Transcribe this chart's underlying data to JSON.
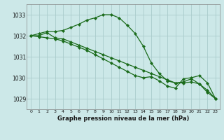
{
  "xlabel": "Graphe pression niveau de la mer (hPa)",
  "background_color": "#cce8e8",
  "grid_color": "#aacccc",
  "line_color": "#1a6b1a",
  "xlim": [
    -0.5,
    23.5
  ],
  "ylim": [
    1028.5,
    1033.5
  ],
  "yticks": [
    1029,
    1030,
    1031,
    1032,
    1033
  ],
  "xticks": [
    0,
    1,
    2,
    3,
    4,
    5,
    6,
    7,
    8,
    9,
    10,
    11,
    12,
    13,
    14,
    15,
    16,
    17,
    18,
    19,
    20,
    21,
    22,
    23
  ],
  "series": [
    {
      "x": [
        0,
        1,
        2,
        3,
        4,
        5,
        6,
        7,
        8,
        9,
        10,
        11,
        12,
        13,
        14,
        15,
        16,
        17,
        18,
        19,
        20,
        21,
        22,
        23
      ],
      "y": [
        1032.0,
        1032.1,
        1032.2,
        1032.2,
        1032.25,
        1032.4,
        1032.55,
        1032.75,
        1032.85,
        1033.0,
        1033.0,
        1032.85,
        1032.5,
        1032.1,
        1031.5,
        1030.7,
        1030.2,
        1029.85,
        1029.75,
        1029.8,
        1029.95,
        1029.7,
        1029.3,
        1029.0
      ]
    },
    {
      "x": [
        0,
        1,
        2,
        3,
        4,
        5,
        6,
        7,
        8,
        9,
        10,
        11,
        12,
        13,
        14,
        15,
        16,
        17,
        18,
        19,
        20,
        21,
        22,
        23
      ],
      "y": [
        1032.0,
        1032.0,
        1032.15,
        1031.9,
        1031.85,
        1031.7,
        1031.55,
        1031.4,
        1031.25,
        1031.1,
        1030.95,
        1030.8,
        1030.65,
        1030.5,
        1030.35,
        1030.2,
        1030.05,
        1029.9,
        1029.75,
        1029.75,
        1029.8,
        1029.7,
        1029.4,
        1029.0
      ]
    },
    {
      "x": [
        0,
        1,
        2,
        3,
        4,
        5,
        6,
        7,
        8,
        9,
        10,
        11,
        12,
        13,
        14,
        15,
        16,
        17,
        18,
        19,
        20,
        21,
        22,
        23
      ],
      "y": [
        1032.0,
        1031.95,
        1031.9,
        1031.85,
        1031.75,
        1031.6,
        1031.45,
        1031.3,
        1031.1,
        1030.9,
        1030.7,
        1030.5,
        1030.3,
        1030.1,
        1030.0,
        1030.05,
        1029.85,
        1029.6,
        1029.5,
        1029.95,
        1030.0,
        1030.1,
        1029.75,
        1029.0
      ]
    }
  ]
}
